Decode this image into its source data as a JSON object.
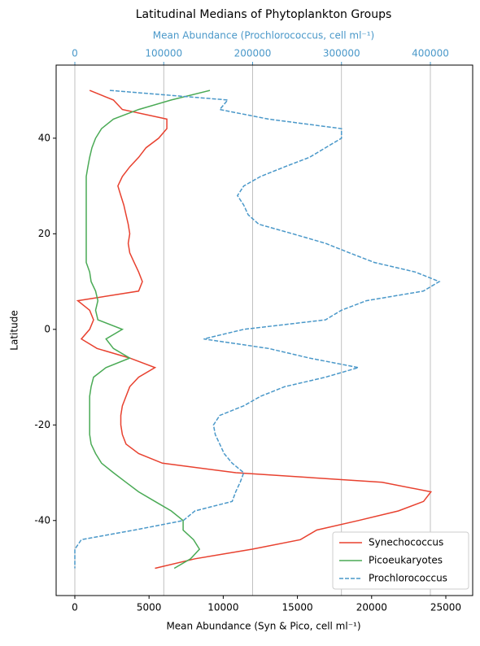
{
  "chart_data": {
    "type": "line",
    "orientation": "horizontal",
    "title": "Latitudinal Medians of Phytoplankton Groups",
    "xlabel": "Mean Abundance (Syn & Pico, cell ml⁻¹)",
    "x2label": "Mean Abundance (Prochlorococcus, cell ml⁻¹)",
    "ylabel": "Latitude",
    "y": [
      50,
      48,
      46,
      44,
      42,
      40,
      38,
      36,
      34,
      32,
      30,
      28,
      26,
      24,
      22,
      20,
      18,
      16,
      14,
      12,
      10,
      8,
      6,
      4,
      2,
      0,
      -2,
      -4,
      -6,
      -8,
      -10,
      -12,
      -14,
      -16,
      -18,
      -20,
      -22,
      -24,
      -26,
      -28,
      -30,
      -32,
      -34,
      -36,
      -38,
      -40,
      -42,
      -44,
      -46,
      -48,
      -50
    ],
    "series": [
      {
        "name": "Synechococcus",
        "color": "#e8412f",
        "style": "solid",
        "axis": "x",
        "values": [
          1000,
          2600,
          3200,
          6200,
          6200,
          5650,
          4800,
          4300,
          3700,
          3200,
          2900,
          3100,
          3300,
          3450,
          3600,
          3700,
          3600,
          3700,
          4000,
          4300,
          4550,
          4300,
          200,
          1000,
          1260,
          1000,
          440,
          1500,
          3700,
          5400,
          4300,
          3700,
          3450,
          3200,
          3100,
          3100,
          3200,
          3450,
          4300,
          5900,
          10850,
          20700,
          24000,
          23500,
          21800,
          19100,
          16300,
          15200,
          11950,
          8100,
          5400
        ]
      },
      {
        "name": "Picoeukaryotes",
        "color": "#4aaa55",
        "style": "solid",
        "axis": "x",
        "values": [
          9100,
          6500,
          4300,
          2600,
          1800,
          1400,
          1150,
          1000,
          880,
          770,
          770,
          770,
          770,
          770,
          770,
          770,
          770,
          770,
          770,
          1000,
          1100,
          1400,
          1550,
          1400,
          1550,
          3200,
          2100,
          2600,
          3700,
          2100,
          1260,
          1100,
          1000,
          1000,
          1000,
          1000,
          1000,
          1100,
          1400,
          1800,
          2600,
          3450,
          4300,
          5400,
          6500,
          7300,
          7300,
          8000,
          8400,
          7800,
          6700
        ]
      },
      {
        "name": "Prochlorococcus",
        "color": "#4a98c9",
        "style": "dashed",
        "axis": "x2",
        "values": [
          39400,
          172000,
          163000,
          218000,
          300000,
          300000,
          282000,
          264000,
          236000,
          209000,
          190000,
          183000,
          190000,
          195000,
          207000,
          245000,
          282000,
          309000,
          337000,
          383000,
          410000,
          392000,
          328000,
          300000,
          282000,
          190000,
          145000,
          218000,
          264000,
          319000,
          282000,
          236000,
          209000,
          190000,
          163000,
          156000,
          158000,
          163000,
          168000,
          177000,
          190000,
          186000,
          181000,
          177000,
          135000,
          122000,
          67000,
          7300,
          0,
          0,
          0
        ]
      }
    ],
    "xlim": [
      -1260,
      26810
    ],
    "xticks": [
      0,
      5000,
      10000,
      15000,
      20000,
      25000
    ],
    "x2lim": [
      -21050,
      447600
    ],
    "x2ticks": [
      0,
      100000,
      200000,
      300000,
      400000
    ],
    "x2_color": "#4a98c9",
    "ylim": [
      -55.7,
      55.3
    ],
    "yticks": [
      -40,
      -20,
      0,
      20,
      40
    ],
    "grid": "x2",
    "legend": "lower right"
  }
}
